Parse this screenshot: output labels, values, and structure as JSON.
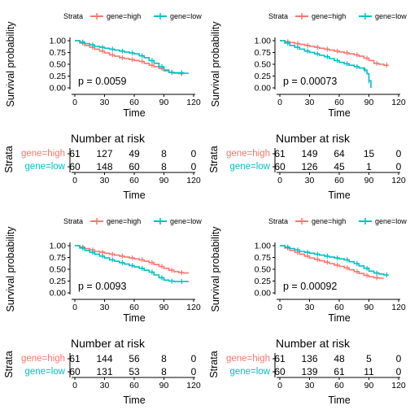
{
  "colors": {
    "high": "#F8766D",
    "low": "#00BFC4",
    "axis": "#000000"
  },
  "common": {
    "legend_title": "Strata",
    "legend_high": "gene=high",
    "legend_low": "gene=low",
    "ylabel": "Survival probability",
    "xlabel": "Time",
    "risk_title": "Number at risk",
    "risk_ylabel": "Strata",
    "y_ticks": [
      "0.00",
      "0.25",
      "0.50",
      "0.75",
      "1.00"
    ],
    "x_ticks": [
      "0",
      "30",
      "60",
      "90",
      "120"
    ]
  },
  "chart_data": [
    {
      "type": "line",
      "title": "",
      "xlabel": "Time",
      "ylabel": "Survival probability",
      "xlim": [
        0,
        120
      ],
      "ylim": [
        0,
        1
      ],
      "legend": "top",
      "p_value": "p = 0.0059",
      "series": [
        {
          "name": "gene=high",
          "x": [
            0,
            5,
            10,
            15,
            20,
            25,
            30,
            35,
            40,
            45,
            50,
            55,
            60,
            65,
            70,
            75,
            80,
            85,
            90,
            95,
            100,
            105,
            110
          ],
          "y": [
            1.0,
            0.95,
            0.9,
            0.86,
            0.82,
            0.78,
            0.74,
            0.7,
            0.67,
            0.64,
            0.62,
            0.6,
            0.58,
            0.56,
            0.52,
            0.48,
            0.45,
            0.41,
            0.36,
            0.33,
            0.31,
            0.3,
            0.3
          ]
        },
        {
          "name": "gene=low",
          "x": [
            0,
            5,
            10,
            15,
            20,
            25,
            30,
            35,
            40,
            45,
            50,
            55,
            60,
            65,
            70,
            75,
            80,
            85,
            90,
            95,
            100,
            105,
            110,
            115
          ],
          "y": [
            1.0,
            0.97,
            0.94,
            0.91,
            0.88,
            0.86,
            0.84,
            0.82,
            0.8,
            0.78,
            0.76,
            0.74,
            0.72,
            0.68,
            0.64,
            0.58,
            0.52,
            0.45,
            0.38,
            0.33,
            0.32,
            0.32,
            0.31,
            0.31
          ]
        }
      ],
      "risk_table": {
        "times": [
          0,
          30,
          60,
          90,
          120
        ],
        "rows": [
          {
            "label": "gene=high",
            "values": [
              "61",
              "127",
              "49",
              "8",
              "0"
            ]
          },
          {
            "label": "gene=low",
            "values": [
              "60",
              "148",
              "60",
              "8",
              "0"
            ]
          }
        ]
      }
    },
    {
      "type": "line",
      "title": "",
      "xlabel": "Time",
      "ylabel": "Survival probability",
      "xlim": [
        0,
        120
      ],
      "ylim": [
        0,
        1
      ],
      "legend": "top",
      "p_value": "p = 0.00073",
      "series": [
        {
          "name": "gene=high",
          "x": [
            0,
            5,
            10,
            15,
            20,
            25,
            30,
            35,
            40,
            45,
            50,
            55,
            60,
            65,
            70,
            75,
            80,
            85,
            90,
            95,
            100,
            105,
            110
          ],
          "y": [
            1.0,
            0.98,
            0.96,
            0.94,
            0.92,
            0.9,
            0.88,
            0.86,
            0.84,
            0.82,
            0.8,
            0.78,
            0.76,
            0.74,
            0.72,
            0.7,
            0.67,
            0.63,
            0.58,
            0.52,
            0.5,
            0.48,
            0.48
          ]
        },
        {
          "name": "gene=low",
          "x": [
            0,
            5,
            10,
            15,
            20,
            25,
            30,
            35,
            40,
            45,
            50,
            55,
            60,
            65,
            70,
            75,
            80,
            85,
            88,
            90,
            92
          ],
          "y": [
            1.0,
            0.95,
            0.9,
            0.86,
            0.82,
            0.78,
            0.75,
            0.72,
            0.69,
            0.66,
            0.62,
            0.58,
            0.54,
            0.51,
            0.48,
            0.45,
            0.42,
            0.38,
            0.3,
            0.15,
            0.0
          ]
        }
      ],
      "risk_table": {
        "times": [
          0,
          30,
          60,
          90,
          120
        ],
        "rows": [
          {
            "label": "gene=high",
            "values": [
              "61",
              "149",
              "64",
              "15",
              "0"
            ]
          },
          {
            "label": "gene=low",
            "values": [
              "60",
              "126",
              "45",
              "1",
              "0"
            ]
          }
        ]
      }
    },
    {
      "type": "line",
      "title": "",
      "xlabel": "Time",
      "ylabel": "Survival probability",
      "xlim": [
        0,
        120
      ],
      "ylim": [
        0,
        1
      ],
      "legend": "top",
      "p_value": "p = 0.0093",
      "series": [
        {
          "name": "gene=high",
          "x": [
            0,
            5,
            10,
            15,
            20,
            25,
            30,
            35,
            40,
            45,
            50,
            55,
            60,
            65,
            70,
            75,
            80,
            85,
            90,
            95,
            100,
            105,
            110,
            115
          ],
          "y": [
            1.0,
            0.97,
            0.94,
            0.91,
            0.88,
            0.86,
            0.84,
            0.82,
            0.8,
            0.78,
            0.76,
            0.74,
            0.72,
            0.7,
            0.67,
            0.64,
            0.6,
            0.56,
            0.52,
            0.48,
            0.45,
            0.43,
            0.42,
            0.42
          ]
        },
        {
          "name": "gene=low",
          "x": [
            0,
            5,
            10,
            15,
            20,
            25,
            30,
            35,
            40,
            45,
            50,
            55,
            60,
            65,
            70,
            75,
            80,
            85,
            90,
            95,
            100,
            105,
            110,
            115
          ],
          "y": [
            1.0,
            0.95,
            0.9,
            0.86,
            0.82,
            0.78,
            0.74,
            0.7,
            0.67,
            0.64,
            0.61,
            0.58,
            0.55,
            0.52,
            0.48,
            0.44,
            0.38,
            0.32,
            0.27,
            0.25,
            0.24,
            0.24,
            0.24,
            0.24
          ]
        }
      ],
      "risk_table": {
        "times": [
          0,
          30,
          60,
          90,
          120
        ],
        "rows": [
          {
            "label": "gene=high",
            "values": [
              "61",
              "144",
              "56",
              "8",
              "0"
            ]
          },
          {
            "label": "gene=low",
            "values": [
              "60",
              "131",
              "53",
              "8",
              "0"
            ]
          }
        ]
      }
    },
    {
      "type": "line",
      "title": "",
      "xlabel": "Time",
      "ylabel": "Survival probability",
      "xlim": [
        0,
        120
      ],
      "ylim": [
        0,
        1
      ],
      "legend": "top",
      "p_value": "p = 0.00092",
      "series": [
        {
          "name": "gene=high",
          "x": [
            0,
            5,
            10,
            15,
            20,
            25,
            30,
            35,
            40,
            45,
            50,
            55,
            60,
            65,
            70,
            75,
            80,
            85,
            90,
            95,
            100,
            105
          ],
          "y": [
            1.0,
            0.95,
            0.9,
            0.86,
            0.82,
            0.78,
            0.74,
            0.71,
            0.68,
            0.65,
            0.62,
            0.59,
            0.56,
            0.53,
            0.49,
            0.45,
            0.41,
            0.37,
            0.34,
            0.32,
            0.31,
            0.31
          ]
        },
        {
          "name": "gene=low",
          "x": [
            0,
            5,
            10,
            15,
            20,
            25,
            30,
            35,
            40,
            45,
            50,
            55,
            60,
            65,
            70,
            75,
            80,
            85,
            90,
            95,
            100,
            105,
            110
          ],
          "y": [
            1.0,
            0.97,
            0.94,
            0.91,
            0.88,
            0.86,
            0.84,
            0.82,
            0.8,
            0.78,
            0.76,
            0.74,
            0.72,
            0.7,
            0.66,
            0.62,
            0.57,
            0.52,
            0.46,
            0.42,
            0.4,
            0.38,
            0.38
          ]
        }
      ],
      "risk_table": {
        "times": [
          0,
          30,
          60,
          90,
          120
        ],
        "rows": [
          {
            "label": "gene=high",
            "values": [
              "61",
              "136",
              "48",
              "5",
              "0"
            ]
          },
          {
            "label": "gene=low",
            "values": [
              "60",
              "139",
              "61",
              "11",
              "0"
            ]
          }
        ]
      }
    }
  ]
}
